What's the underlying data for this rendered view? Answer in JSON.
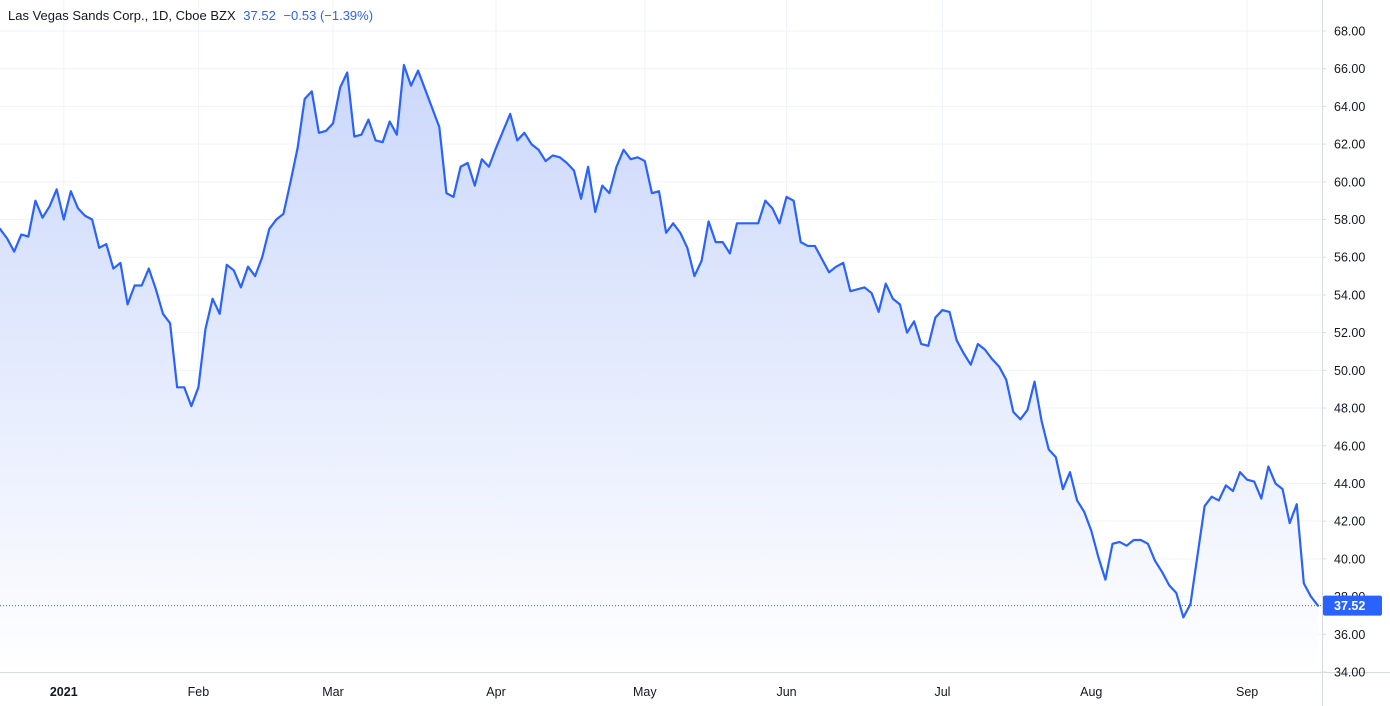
{
  "legend": {
    "symbol": "Las Vegas Sands Corp., 1D, Cboe BZX",
    "last": "37.52",
    "change": "−0.53 (−1.39%)"
  },
  "colors": {
    "line": "#2962ff",
    "fill_top": "#c9d6fb",
    "fill_bottom": "#ffffff",
    "grid": "#f0f3fa",
    "axis_border": "#d6dae3",
    "price_label": "#2962ff",
    "last_price_dotted": "#2962ff"
  },
  "chart_data": {
    "type": "area",
    "ylim": [
      34,
      69.5
    ],
    "y_ticks": [
      "34.00",
      "36.00",
      "38.00",
      "40.00",
      "42.00",
      "44.00",
      "46.00",
      "48.00",
      "50.00",
      "52.00",
      "54.00",
      "56.00",
      "58.00",
      "60.00",
      "62.00",
      "64.00",
      "66.00",
      "68.00"
    ],
    "x_ticks": [
      {
        "label": "2021",
        "index": 9,
        "bold": true
      },
      {
        "label": "Feb",
        "index": 28,
        "bold": false
      },
      {
        "label": "Mar",
        "index": 47,
        "bold": false
      },
      {
        "label": "Apr",
        "index": 70,
        "bold": false
      },
      {
        "label": "May",
        "index": 91,
        "bold": false
      },
      {
        "label": "Jun",
        "index": 111,
        "bold": false
      },
      {
        "label": "Jul",
        "index": 133,
        "bold": false
      },
      {
        "label": "Aug",
        "index": 154,
        "bold": false
      },
      {
        "label": "Sep",
        "index": 176,
        "bold": false
      }
    ],
    "last_value": 37.52,
    "last_label": "37.52",
    "series": [
      {
        "values": [
          57.5,
          57.0,
          56.3,
          57.2,
          57.1,
          59.0,
          58.1,
          58.7,
          59.6,
          58.0,
          59.5,
          58.6,
          58.2,
          58.0,
          56.5,
          56.7,
          55.4,
          55.7,
          53.5,
          54.5,
          54.5,
          55.4,
          54.3,
          53.0,
          52.5,
          49.1,
          49.1,
          48.1,
          49.1,
          52.2,
          53.8,
          53.0,
          55.6,
          55.3,
          54.4,
          55.5,
          55.0,
          56.0,
          57.5,
          58.0,
          58.3,
          60.0,
          61.8,
          64.4,
          64.8,
          62.6,
          62.7,
          63.1,
          65.0,
          65.8,
          62.4,
          62.5,
          63.3,
          62.2,
          62.1,
          63.2,
          62.5,
          66.2,
          65.1,
          65.9,
          64.9,
          63.9,
          62.9,
          59.4,
          59.2,
          60.8,
          61.0,
          59.8,
          61.2,
          60.8,
          61.8,
          62.7,
          63.6,
          62.2,
          62.6,
          62.0,
          61.7,
          61.1,
          61.4,
          61.3,
          61.0,
          60.6,
          59.1,
          60.8,
          58.4,
          59.8,
          59.4,
          60.8,
          61.7,
          61.2,
          61.3,
          61.1,
          59.4,
          59.5,
          57.3,
          57.8,
          57.3,
          56.5,
          55.0,
          55.8,
          57.9,
          56.8,
          56.8,
          56.2,
          57.8,
          57.8,
          57.8,
          57.8,
          59.0,
          58.6,
          57.8,
          59.2,
          59.0,
          56.8,
          56.6,
          56.6,
          55.9,
          55.2,
          55.5,
          55.7,
          54.2,
          54.3,
          54.4,
          54.1,
          53.1,
          54.6,
          53.8,
          53.5,
          52.0,
          52.6,
          51.4,
          51.3,
          52.8,
          53.2,
          53.1,
          51.6,
          50.9,
          50.3,
          51.4,
          51.1,
          50.6,
          50.2,
          49.5,
          47.8,
          47.4,
          47.9,
          49.4,
          47.3,
          45.8,
          45.4,
          43.7,
          44.6,
          43.1,
          42.5,
          41.5,
          40.1,
          38.9,
          40.8,
          40.9,
          40.7,
          41.0,
          41.0,
          40.8,
          39.9,
          39.3,
          38.6,
          38.2,
          36.9,
          37.6,
          40.2,
          42.8,
          43.3,
          43.1,
          43.9,
          43.6,
          44.6,
          44.2,
          44.1,
          43.2,
          44.9,
          44.0,
          43.7,
          41.9,
          42.9,
          38.7,
          38.0,
          37.52
        ]
      }
    ]
  }
}
